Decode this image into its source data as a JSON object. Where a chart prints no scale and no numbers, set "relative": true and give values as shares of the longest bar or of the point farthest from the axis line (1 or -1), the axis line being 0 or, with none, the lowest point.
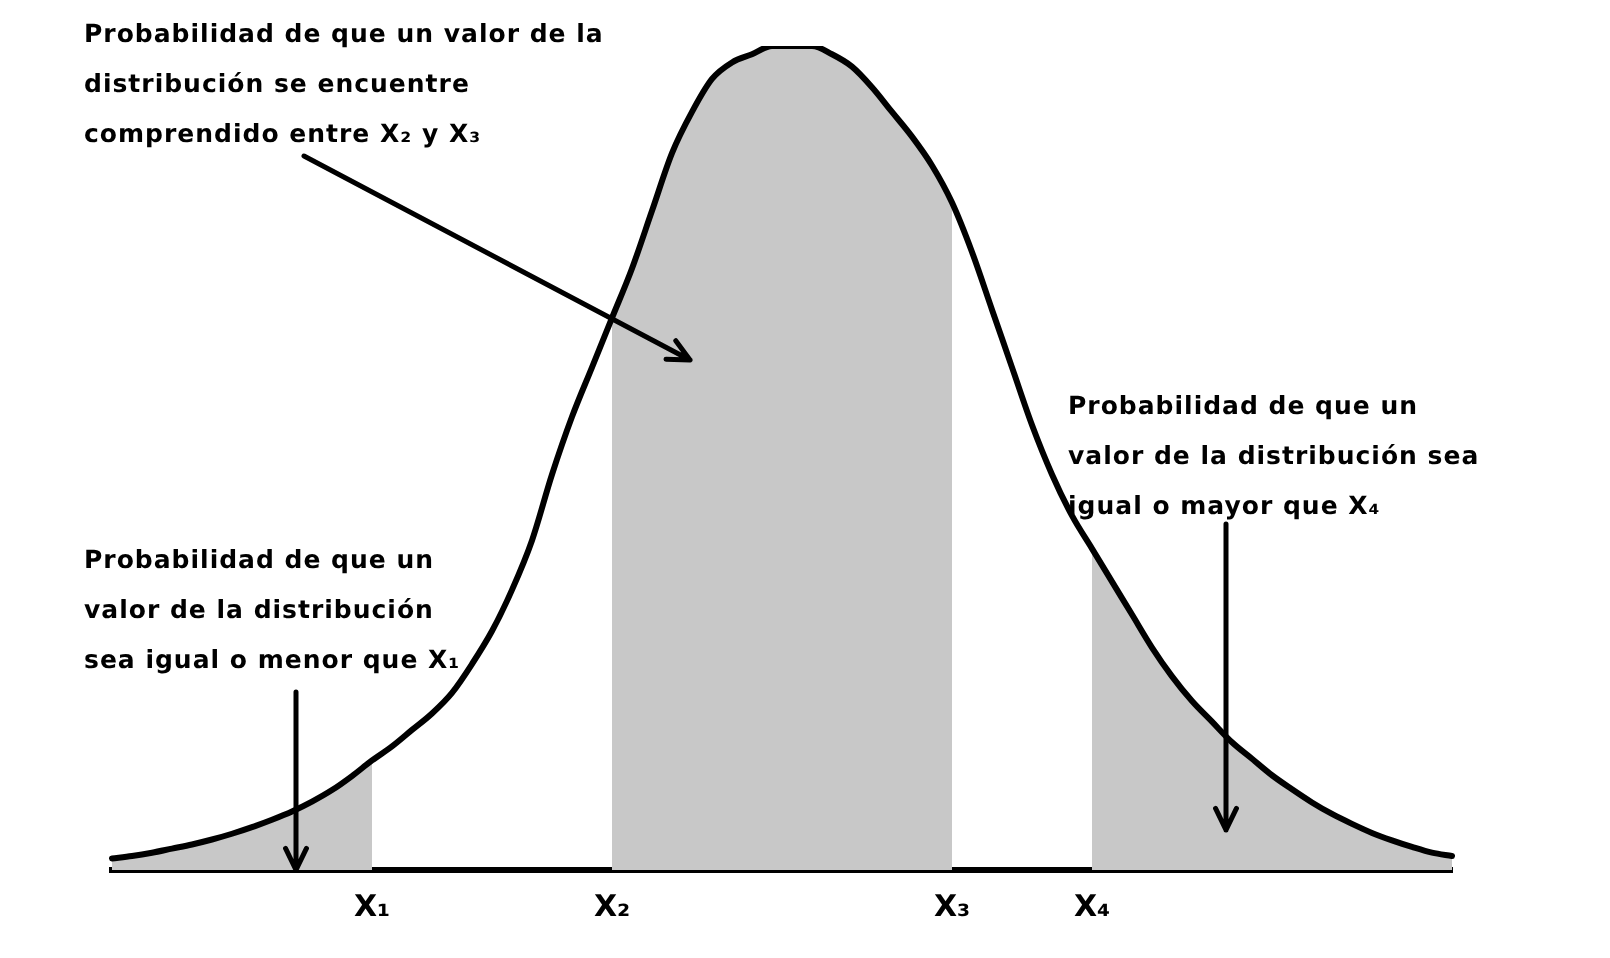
{
  "chart_data": {
    "type": "line",
    "relative": true,
    "tick_labels": "x",
    "grid": false,
    "legend": false,
    "marker": "none",
    "categories": [
      null,
      null,
      null,
      null,
      null,
      null,
      null,
      null,
      null,
      null,
      null,
      null,
      null,
      "X₁",
      null,
      null,
      null,
      null,
      null,
      null,
      null,
      null,
      null,
      null,
      null,
      "X₂",
      null,
      null,
      null,
      null,
      null,
      null,
      null,
      null,
      null,
      null,
      null,
      null,
      null,
      null,
      null,
      null,
      "X₃",
      null,
      null,
      null,
      null,
      null,
      null,
      "X₄",
      null,
      null,
      null,
      null,
      null,
      null,
      null,
      null,
      null,
      null,
      null,
      null,
      null,
      null,
      null,
      null,
      null,
      null
    ],
    "series": [
      {
        "type": "area",
        "color": "#c8c8c8",
        "values": [
          0.014,
          0.017,
          0.021,
          0.026,
          0.031,
          0.037,
          0.044,
          0.052,
          0.061,
          0.071,
          0.083,
          0.097,
          0.114,
          0.133,
          null,
          null,
          null,
          null,
          null,
          null,
          null,
          null,
          null,
          null,
          null,
          null,
          null,
          null,
          null,
          null,
          null,
          null,
          null,
          null,
          null,
          null,
          null,
          null,
          null,
          null,
          null,
          null,
          null,
          null,
          null,
          null,
          null,
          null,
          null,
          null,
          null,
          null,
          null,
          null,
          null,
          null,
          null,
          null,
          null,
          null,
          null,
          null,
          null,
          null,
          null,
          null,
          null,
          null
        ]
      },
      {
        "type": "area",
        "color": "#c8c8c8",
        "values": [
          null,
          null,
          null,
          null,
          null,
          null,
          null,
          null,
          null,
          null,
          null,
          null,
          null,
          null,
          null,
          null,
          null,
          null,
          null,
          null,
          null,
          null,
          null,
          null,
          null,
          0.67,
          0.73,
          0.8,
          0.87,
          0.92,
          0.96,
          0.98,
          0.99,
          1,
          1,
          1,
          0.99,
          0.975,
          0.95,
          0.92,
          0.89,
          0.855,
          0.81,
          null,
          null,
          null,
          null,
          null,
          null,
          null,
          null,
          null,
          null,
          null,
          null,
          null,
          null,
          null,
          null,
          null,
          null,
          null,
          null,
          null,
          null,
          null,
          null,
          null
        ]
      },
      {
        "type": "area",
        "color": "#c8c8c8",
        "values": [
          null,
          null,
          null,
          null,
          null,
          null,
          null,
          null,
          null,
          null,
          null,
          null,
          null,
          null,
          null,
          null,
          null,
          null,
          null,
          null,
          null,
          null,
          null,
          null,
          null,
          null,
          null,
          null,
          null,
          null,
          null,
          null,
          null,
          null,
          null,
          null,
          null,
          null,
          null,
          null,
          null,
          null,
          null,
          null,
          null,
          null,
          null,
          null,
          null,
          0.39,
          0.35,
          0.31,
          0.27,
          0.235,
          0.205,
          0.18,
          0.155,
          0.135,
          0.115,
          0.098,
          0.082,
          0.068,
          0.056,
          0.045,
          0.036,
          0.028,
          0.021,
          0.017
        ]
      },
      {
        "type": "line",
        "color": "#000000",
        "values": [
          0.014,
          0.017,
          0.021,
          0.026,
          0.031,
          0.037,
          0.044,
          0.052,
          0.061,
          0.071,
          0.083,
          0.097,
          0.114,
          0.133,
          0.15,
          0.17,
          0.19,
          0.215,
          0.25,
          0.29,
          0.34,
          0.4,
          0.48,
          0.55,
          0.61,
          0.67,
          0.73,
          0.8,
          0.87,
          0.92,
          0.96,
          0.98,
          0.99,
          1,
          1,
          1,
          0.99,
          0.975,
          0.95,
          0.92,
          0.89,
          0.855,
          0.81,
          0.75,
          0.68,
          0.61,
          0.54,
          0.48,
          0.43,
          0.39,
          0.35,
          0.31,
          0.27,
          0.235,
          0.205,
          0.18,
          0.155,
          0.135,
          0.115,
          0.098,
          0.082,
          0.068,
          0.056,
          0.045,
          0.036,
          0.028,
          0.021,
          0.017
        ]
      }
    ],
    "annotations": [
      "Probabilidad de que un valor de la distribución se encuentre comprendido entre X₂ y X₃",
      "Probabilidad de que un valor de la distribución sea igual o menor que X₁",
      "Probabilidad de que un valor de la distribución sea igual o mayor que X₄"
    ]
  }
}
